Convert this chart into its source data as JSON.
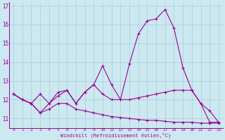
{
  "xlabel": "Windchill (Refroidissement éolien,°C)",
  "x": [
    0,
    1,
    2,
    3,
    4,
    5,
    6,
    7,
    8,
    9,
    10,
    11,
    12,
    13,
    14,
    15,
    16,
    17,
    18,
    19,
    20,
    21,
    22,
    23
  ],
  "line1": [
    12.3,
    12.0,
    11.8,
    11.3,
    11.8,
    12.4,
    12.5,
    11.8,
    12.4,
    12.8,
    13.8,
    12.8,
    12.0,
    13.9,
    15.5,
    16.2,
    16.3,
    16.8,
    15.8,
    13.7,
    12.5,
    11.8,
    11.4,
    10.8
  ],
  "line2": [
    12.3,
    12.0,
    11.8,
    12.3,
    11.8,
    12.2,
    12.5,
    11.8,
    12.4,
    12.8,
    12.3,
    12.0,
    12.0,
    12.0,
    12.1,
    12.2,
    12.3,
    12.4,
    12.5,
    12.5,
    12.5,
    11.8,
    10.8,
    10.8
  ],
  "line3": [
    12.3,
    12.0,
    11.8,
    11.3,
    11.5,
    11.8,
    11.8,
    11.5,
    11.4,
    11.3,
    11.2,
    11.1,
    11.05,
    11.0,
    10.95,
    10.9,
    10.9,
    10.85,
    10.8,
    10.8,
    10.8,
    10.75,
    10.75,
    10.75
  ],
  "line_color": "#990099",
  "bg_color": "#cce8f0",
  "grid_color": "#aaccdd",
  "ylim_min": 10.5,
  "ylim_max": 17.2,
  "xlim_min": -0.5,
  "xlim_max": 23.5,
  "yticks": [
    11,
    12,
    13,
    14,
    15,
    16,
    17
  ],
  "xticks": [
    0,
    1,
    2,
    3,
    4,
    5,
    6,
    7,
    8,
    9,
    10,
    11,
    12,
    13,
    14,
    15,
    16,
    17,
    18,
    19,
    20,
    21,
    22,
    23
  ]
}
